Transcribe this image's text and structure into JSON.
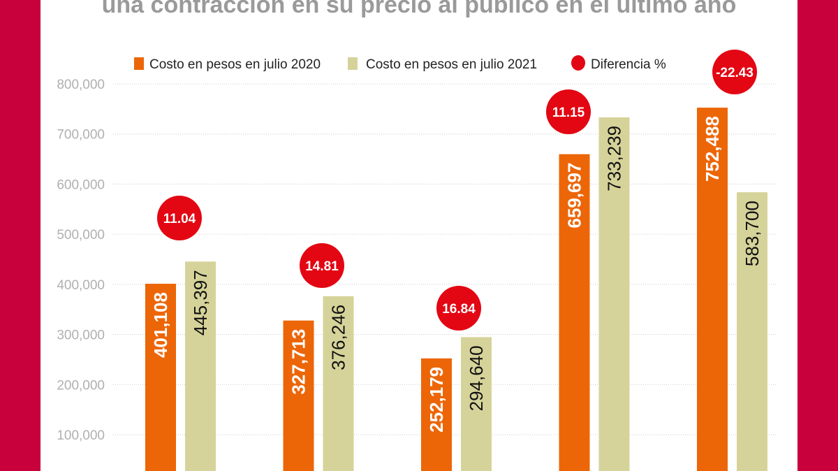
{
  "chart_data": {
    "type": "bar",
    "title": "una contracción en su precio al público en el último año",
    "categories": [
      "",
      "",
      "",
      "",
      ""
    ],
    "series": [
      {
        "name": "Costo en pesos en julio 2020",
        "color": "#EC6608",
        "values": [
          401108,
          327713,
          252179,
          659697,
          752488
        ],
        "labels": [
          "401,108",
          "327,713",
          "252,179",
          "659,697",
          "752,488"
        ]
      },
      {
        "name": "Costo en pesos en julio 2021",
        "color": "#D6D39A",
        "values": [
          445397,
          376246,
          294640,
          733239,
          583700
        ],
        "labels": [
          "445,397",
          "376,246",
          "294,640",
          "733,239",
          "583,700"
        ]
      }
    ],
    "difference": {
      "name": "Diferencia %",
      "color": "#E30613",
      "values": [
        11.04,
        14.81,
        16.84,
        11.15,
        -22.43
      ],
      "labels": [
        "11.04",
        "14.81",
        "16.84",
        "11.15",
        "-22.43"
      ]
    },
    "yticks": [
      "100,000",
      "200,000",
      "300,000",
      "400,000",
      "500,000",
      "600,000",
      "700,000",
      "800,000"
    ],
    "ytick_values": [
      100000,
      200000,
      300000,
      400000,
      500000,
      600000,
      700000,
      800000
    ],
    "ylim": [
      0,
      800000
    ],
    "grid": true,
    "legend": "top"
  },
  "colors": {
    "frame": "#C8003C",
    "title": "#9A9A9A",
    "grid": "#CCCCCC",
    "tick": "#B0B0B0"
  }
}
